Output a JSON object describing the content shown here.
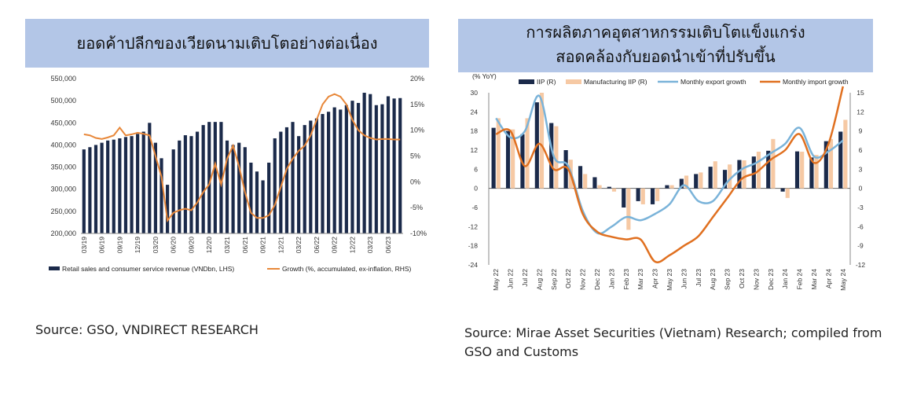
{
  "left": {
    "title": "ยอดค้าปลีกของเวียดนามเติบโตอย่างต่อเนื่อง",
    "source": "Source: GSO, VNDIRECT RESEARCH"
  },
  "right": {
    "title_line1": "การผลิตภาคอุตสาหกรรมเติบโตแข็งแกร่ง",
    "title_line2": "สอดคล้องกับยอดนำเข้าที่ปรับขึ้น",
    "source": "Source: Mirae Asset Securities (Vietnam) Research; compiled from GSO and Customs"
  },
  "colors": {
    "navy": "#1b2a4a",
    "orange": "#e8883a",
    "peach": "#f6c9a4",
    "lightblue": "#7ab3d9",
    "darkorange": "#e07020",
    "band": "#b3c6e7"
  },
  "chart_data": [
    {
      "type": "bar",
      "secondary_type": "line",
      "ylim": [
        200000,
        550000
      ],
      "y2lim": [
        -10,
        20
      ],
      "y_ticks": [
        "550,000",
        "500,000",
        "450,000",
        "400,000",
        "350,000",
        "300,000",
        "250,000",
        "200,000"
      ],
      "y2_ticks": [
        "20%",
        "15%",
        "10%",
        "5%",
        "0%",
        "-5%",
        "-10%"
      ],
      "x_ticks": [
        "03/19",
        "06/19",
        "09/19",
        "12/19",
        "03/20",
        "06/20",
        "09/20",
        "12/20",
        "03/21",
        "06/21",
        "09/21",
        "12/21",
        "03/22",
        "06/22",
        "09/22",
        "12/22",
        "03/23",
        "06/23"
      ],
      "legend": [
        "Retail sales and consumer service revenue (VNDbn, LHS)",
        "Growth (%, accumulated, ex-inflation, RHS)"
      ],
      "series": [
        {
          "name": "Retail sales and consumer service revenue (VNDbn, LHS)",
          "axis": "left",
          "values": [
            390000,
            395000,
            400000,
            405000,
            410000,
            412000,
            415000,
            418000,
            420000,
            425000,
            430000,
            450000,
            405000,
            370000,
            310000,
            390000,
            410000,
            422000,
            420000,
            430000,
            445000,
            452000,
            452000,
            452000,
            410000,
            400000,
            405000,
            395000,
            360000,
            340000,
            320000,
            360000,
            415000,
            430000,
            440000,
            452000,
            420000,
            445000,
            455000,
            460000,
            470000,
            475000,
            485000,
            480000,
            490000,
            500000,
            495000,
            518000,
            515000,
            490000,
            492000,
            510000,
            505000,
            506000
          ]
        },
        {
          "name": "Growth (%, accumulated, ex-inflation, RHS)",
          "axis": "right",
          "values": [
            9.2,
            9.0,
            8.5,
            8.3,
            8.6,
            9.0,
            10.5,
            9.0,
            9.2,
            9.5,
            9.3,
            9.0,
            5.0,
            1.0,
            -7.5,
            -6.0,
            -5.5,
            -5.2,
            -5.5,
            -4.0,
            -2.0,
            -0.5,
            3.5,
            -0.5,
            4.5,
            7.0,
            3.0,
            -2.0,
            -6.0,
            -7.0,
            -7.0,
            -6.5,
            -4.5,
            -1.0,
            2.5,
            4.5,
            6.0,
            7.0,
            9.0,
            12.0,
            15.0,
            16.5,
            17.0,
            16.5,
            15.0,
            12.0,
            10.0,
            9.0,
            8.5,
            8.2,
            8.3,
            8.3,
            8.2,
            8.2
          ]
        }
      ]
    },
    {
      "type": "bar",
      "secondary_type": "line",
      "y_axis_label": "(% YoY)",
      "ylim": [
        -24,
        30
      ],
      "y2lim": [
        -12,
        15
      ],
      "y_ticks": [
        "30",
        "24",
        "18",
        "12",
        "6",
        "0",
        "-6",
        "-12",
        "-18",
        "-24"
      ],
      "y2_ticks": [
        "15",
        "12",
        "9",
        "6",
        "3",
        "0",
        "-3",
        "-6",
        "-9",
        "-12"
      ],
      "categories": [
        "May 22",
        "Jun 22",
        "Jul 22",
        "Aug 22",
        "Sep 22",
        "Oct 22",
        "Nov 22",
        "Dec 22",
        "Jan 23",
        "Feb 23",
        "Mar 23",
        "Apr 23",
        "May 23",
        "Jun 23",
        "Jul 23",
        "Aug 23",
        "Sep 23",
        "Oct 23",
        "Nov 23",
        "Dec 23",
        "Jan 24",
        "Feb 24",
        "Mar 24",
        "Apr 24",
        "May 24"
      ],
      "legend": [
        "IIP (R)",
        "Manufacturing IIP (R)",
        "Monthly export growth",
        "Monthly import growth"
      ],
      "series": [
        {
          "name": "IIP (R)",
          "axis": "left",
          "values": [
            19,
            18,
            17,
            27,
            20.5,
            12,
            7,
            3.5,
            0.5,
            -6,
            -4,
            -5,
            1,
            3,
            4.5,
            6.8,
            5.8,
            8.9,
            10,
            11.8,
            -1,
            11.6,
            9.7,
            14.8,
            17.8
          ]
        },
        {
          "name": "Manufacturing IIP (R)",
          "axis": "left",
          "values": [
            22,
            18.5,
            22,
            30,
            19.5,
            9,
            4.5,
            1,
            -1,
            -13,
            -5,
            -4,
            1,
            4,
            5,
            8.5,
            7.5,
            8.8,
            11.5,
            15.5,
            -3,
            11.5,
            10.5,
            15.5,
            21.5
          ]
        },
        {
          "name": "Monthly export growth",
          "axis": "right",
          "values": [
            11,
            8,
            9,
            14.5,
            5,
            3.5,
            -3.5,
            -7,
            -6,
            -4.5,
            -5,
            -4,
            -2.5,
            0.5,
            -2,
            -2,
            1,
            3,
            4,
            5.5,
            7,
            9.5,
            5,
            5.8,
            7.5
          ]
        },
        {
          "name": "Monthly import growth",
          "axis": "right",
          "values": [
            8.5,
            9,
            3.5,
            7,
            3,
            3,
            -4,
            -6.8,
            -7.6,
            -8,
            -8,
            -11.5,
            -10.5,
            -9,
            -7.5,
            -4.5,
            -1.5,
            1.5,
            2.5,
            4.5,
            6,
            8.5,
            4,
            7,
            16
          ]
        }
      ]
    }
  ]
}
